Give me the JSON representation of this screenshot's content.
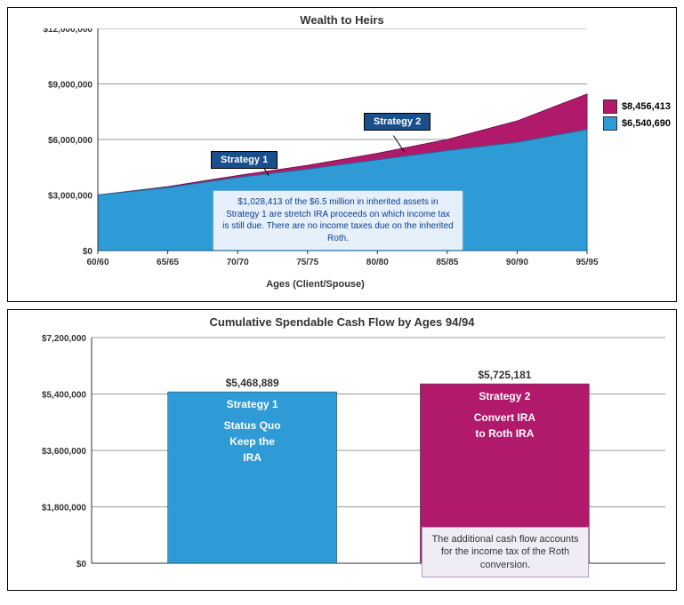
{
  "top_chart": {
    "type": "area",
    "title": "Wealth to Heirs",
    "x_title": "Ages (Client/Spouse)",
    "ylim": [
      0,
      12000000
    ],
    "ytick_step": 3000000,
    "yticks": [
      "$0",
      "$3,000,000",
      "$6,000,000",
      "$9,000,000",
      "$12,000,000"
    ],
    "x_categories": [
      "60/60",
      "65/65",
      "70/70",
      "75/75",
      "80/80",
      "85/85",
      "90/90",
      "95/95"
    ],
    "series1": {
      "name": "Strategy 1",
      "callout": "Strategy 1",
      "color": "#2e9bd6",
      "legend_value": "$6,540,690",
      "data": [
        3000000,
        3400000,
        3950000,
        4400000,
        4900000,
        5400000,
        5850000,
        6540690
      ]
    },
    "series2": {
      "name": "Strategy 2",
      "callout": "Strategy 2",
      "color": "#b11a6b",
      "legend_value": "$8,456,413",
      "data": [
        3000000,
        3450000,
        4050000,
        4600000,
        5250000,
        6000000,
        7000000,
        8456413
      ]
    },
    "annotation": "$1,028,413 of the $6.5 million in inherited assets in Strategy 1 are stretch IRA proceeds on which income tax is still due. There are no income taxes due on the inherited Roth.",
    "grid_color": "#999999",
    "background": "#ffffff"
  },
  "bottom_chart": {
    "type": "bar",
    "title": "Cumulative Spendable Cash Flow by Ages 94/94",
    "ylim": [
      0,
      7200000
    ],
    "ytick_step": 1800000,
    "yticks": [
      "$0",
      "$1,800,000",
      "$3,600,000",
      "$5,400,000",
      "$7,200,000"
    ],
    "bars": [
      {
        "value": 5468889,
        "value_label": "$5,468,889",
        "title": "Strategy 1",
        "line2": "Status Quo",
        "line3": "Keep the",
        "line4": "IRA",
        "color": "#2e9bd6"
      },
      {
        "value": 5725181,
        "value_label": "$5,725,181",
        "title": "Strategy 2",
        "line2": "Convert IRA",
        "line3": "to Roth IRA",
        "line4": "",
        "color": "#b11a6b"
      }
    ],
    "annotation": "The additional cash flow accounts for the income tax of the Roth conversion.",
    "grid_color": "#999999",
    "background": "#ffffff"
  }
}
